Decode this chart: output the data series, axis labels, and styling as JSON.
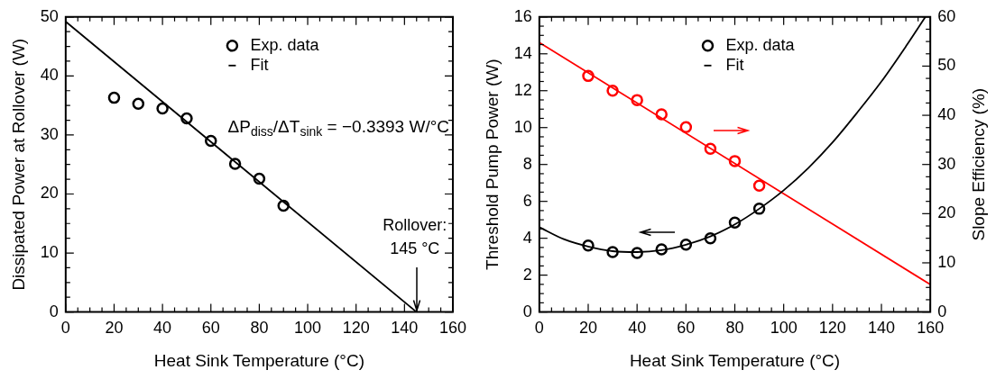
{
  "chart_data": [
    {
      "type": "scatter",
      "xlabel": "Heat Sink Temperature (°C)",
      "ylabel": "Dissipated Power at Rollover (W)",
      "xlim": [
        0,
        160
      ],
      "xticks": [
        0,
        20,
        40,
        60,
        80,
        100,
        120,
        140,
        160
      ],
      "ylim": [
        0,
        50
      ],
      "yticks": [
        0,
        10,
        20,
        30,
        40,
        50
      ],
      "legend": "top",
      "grid": false,
      "series": [
        {
          "name": "Exp. data",
          "marker": "circle",
          "color": "#000000",
          "x": [
            20,
            30,
            40,
            50,
            60,
            70,
            80,
            90
          ],
          "values": [
            36.3,
            35.3,
            34.5,
            32.8,
            29.0,
            25.1,
            22.6,
            18.0
          ]
        },
        {
          "name": "Fit",
          "type": "line",
          "marker": "none",
          "color": "#000000",
          "x": [
            0,
            145
          ],
          "values": [
            49.2,
            0
          ]
        }
      ],
      "annotations": [
        "ΔP$_{diss}$/ΔT$_{sink}$ = −0.3393 W/°C",
        {
          "text": "Rollover:\n145 °C",
          "x": 145,
          "y": 0
        }
      ]
    },
    {
      "type": "scatter",
      "xlabel": "Heat Sink Temperature (°C)",
      "ylabel": "Threshold Pump Power (W)",
      "y2label": "Slope Efficiency (%)",
      "xlim": [
        0,
        160
      ],
      "xticks": [
        0,
        20,
        40,
        60,
        80,
        100,
        120,
        140,
        160
      ],
      "ylim": [
        0,
        16
      ],
      "yticks": [
        0,
        2,
        4,
        6,
        8,
        10,
        12,
        14,
        16
      ],
      "y2lim": [
        0,
        60
      ],
      "y2ticks": [
        0,
        10,
        20,
        30,
        40,
        50,
        60
      ],
      "legend": "top",
      "grid": false,
      "series": [
        {
          "name": "Exp. data",
          "marker": "circle",
          "color": "#000000",
          "x": [
            20,
            30,
            40,
            50,
            60,
            70,
            80,
            90
          ],
          "values": [
            3.6,
            3.25,
            3.2,
            3.4,
            3.65,
            4.0,
            4.85,
            5.6
          ]
        },
        {
          "name": "Fit",
          "type": "line",
          "marker": "none",
          "color": "#000000",
          "x": [
            0,
            10,
            20,
            30,
            40,
            50,
            60,
            70,
            80,
            90,
            100,
            110,
            120,
            130,
            140,
            150,
            158
          ],
          "values": [
            4.6,
            3.95,
            3.55,
            3.3,
            3.25,
            3.35,
            3.65,
            4.1,
            4.75,
            5.6,
            6.6,
            7.8,
            9.2,
            10.8,
            12.5,
            14.4,
            16
          ]
        },
        {
          "axis": "y2",
          "marker": "circle",
          "color": "#ff0000",
          "x": [
            20,
            30,
            40,
            50,
            60,
            70,
            80,
            90
          ],
          "values": [
            48,
            45,
            43.1,
            40.2,
            37.6,
            33.2,
            30.7,
            25.7
          ]
        },
        {
          "type": "line",
          "axis": "y2",
          "marker": "none",
          "color": "#ff0000",
          "x": [
            0,
            160
          ],
          "values": [
            54.8,
            5.6
          ]
        }
      ]
    }
  ]
}
